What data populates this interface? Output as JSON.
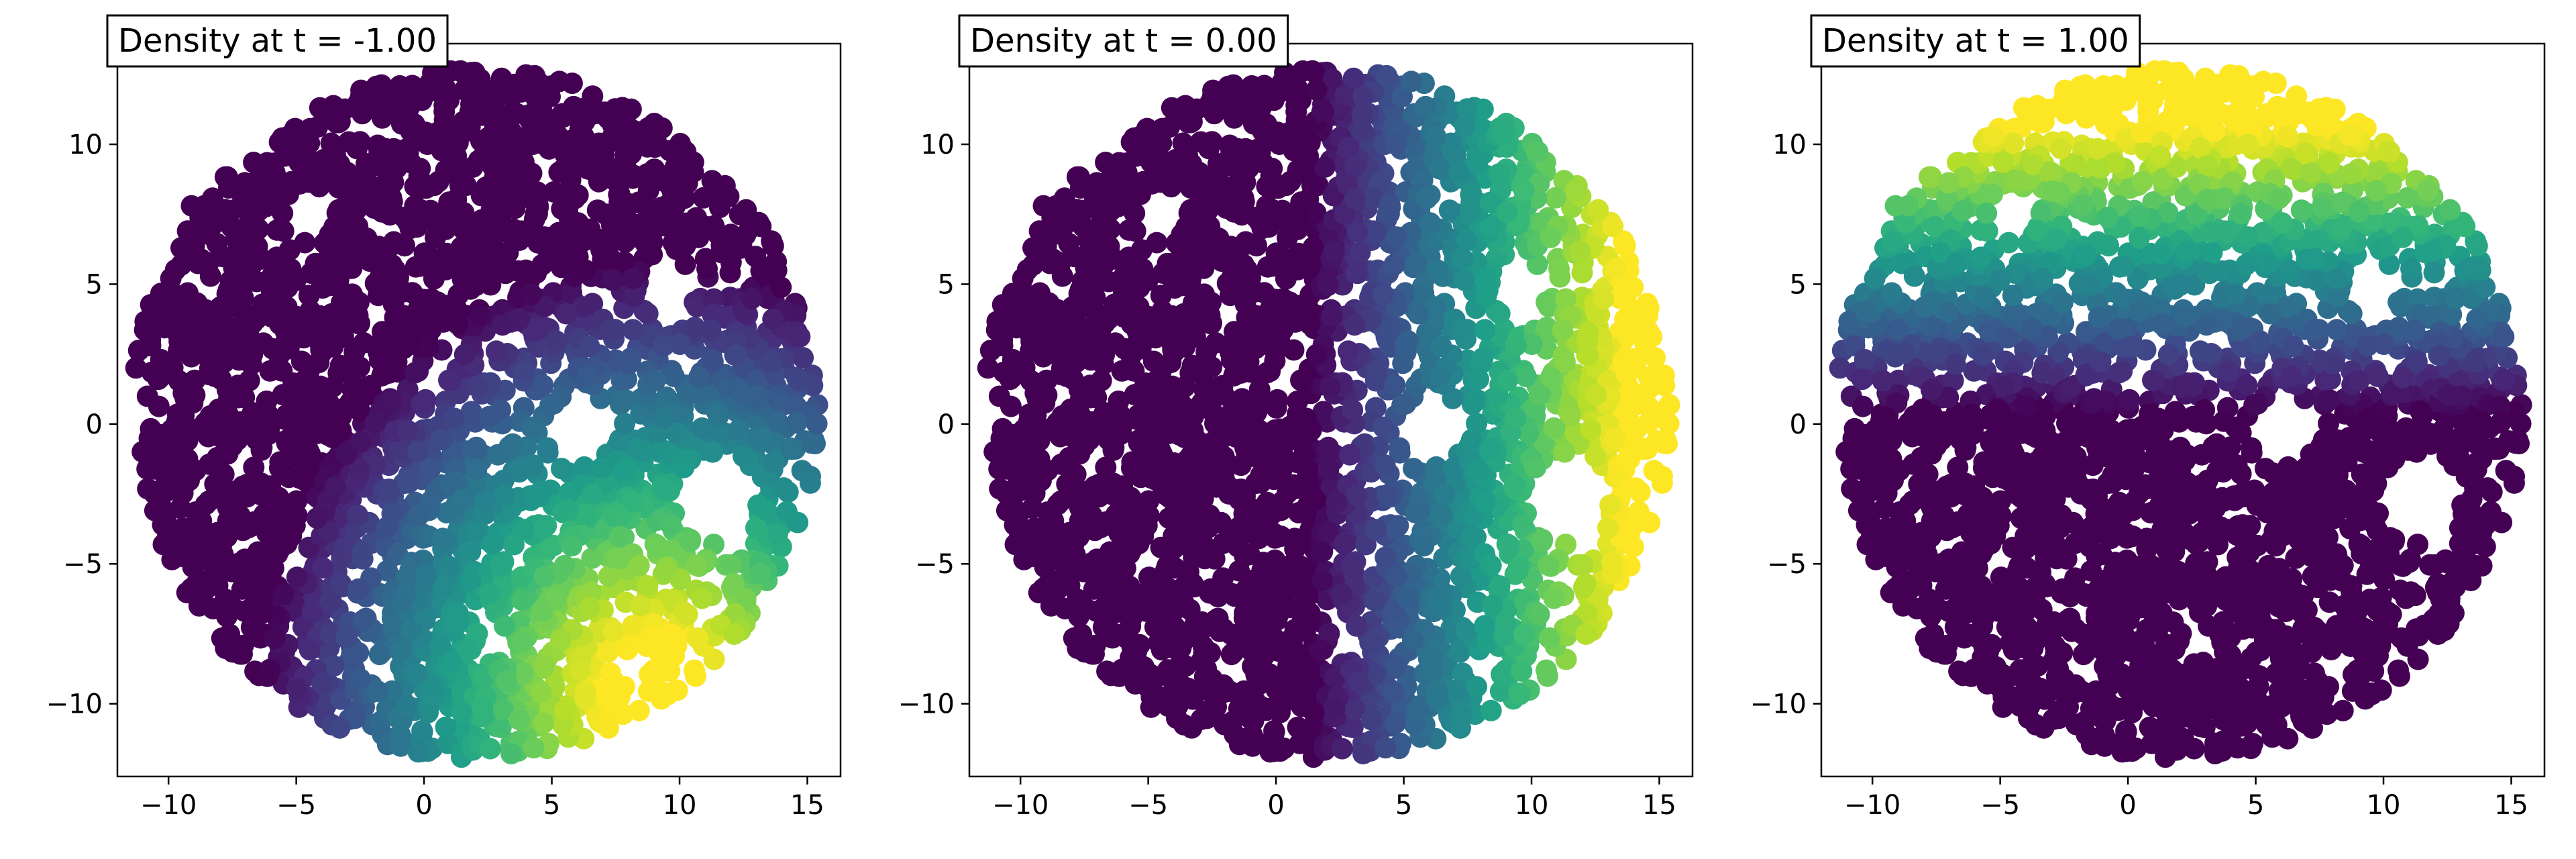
{
  "chart_data": [
    {
      "type": "scatter",
      "title": "Density at t = -1.00",
      "t": -1.0,
      "xlim": [
        -12,
        16.3
      ],
      "ylim": [
        -12.6,
        13.6
      ],
      "x_ticks": [
        -10,
        -5,
        0,
        5,
        10,
        15
      ],
      "y_ticks": [
        -10,
        -5,
        0,
        5,
        10
      ],
      "x_tick_labels": [
        "−10",
        "−5",
        "0",
        "5",
        "10",
        "15"
      ],
      "y_tick_labels": [
        "−10",
        "−5",
        "0",
        "5",
        "10"
      ],
      "colormap": "viridis",
      "grid": false,
      "points": "≈3000 random points filling a disk of radius ≈13.5 centred near (2, 0), with empty holes near (6, 0) and (11, -3); colour gradient increasing towards the lower-right (yellow near (8, -9))"
    },
    {
      "type": "scatter",
      "title": "Density at t = 0.00",
      "t": 0.0,
      "xlim": [
        -12,
        16.3
      ],
      "ylim": [
        -12.6,
        13.6
      ],
      "x_ticks": [
        -10,
        -5,
        0,
        5,
        10,
        15
      ],
      "y_ticks": [
        -10,
        -5,
        0,
        5,
        10
      ],
      "x_tick_labels": [
        "−10",
        "−5",
        "0",
        "5",
        "10",
        "15"
      ],
      "y_tick_labels": [
        "−10",
        "−5",
        "0",
        "5",
        "10"
      ],
      "colormap": "viridis",
      "grid": false,
      "points": "same point cloud; colour gradient increasing towards the right (yellow near x ≈ 13)"
    },
    {
      "type": "scatter",
      "title": "Density at t = 1.00",
      "t": 1.0,
      "xlim": [
        -12,
        16.3
      ],
      "ylim": [
        -12.6,
        13.6
      ],
      "x_ticks": [
        -10,
        -5,
        0,
        5,
        10,
        15
      ],
      "y_ticks": [
        -10,
        -5,
        0,
        5,
        10
      ],
      "x_tick_labels": [
        "−10",
        "−5",
        "0",
        "5",
        "10",
        "15"
      ],
      "y_tick_labels": [
        "−10",
        "−5",
        "0",
        "5",
        "10"
      ],
      "colormap": "viridis",
      "grid": false,
      "points": "same point cloud; colour gradient increasing towards the top (yellow near (5, 10))"
    }
  ],
  "colors": {
    "viridis_stops": [
      "#440154",
      "#482878",
      "#3e4989",
      "#31688e",
      "#26828e",
      "#1f9e89",
      "#35b779",
      "#6ece58",
      "#b5de2b",
      "#fde725"
    ],
    "axis": "#000000",
    "background": "#ffffff"
  }
}
